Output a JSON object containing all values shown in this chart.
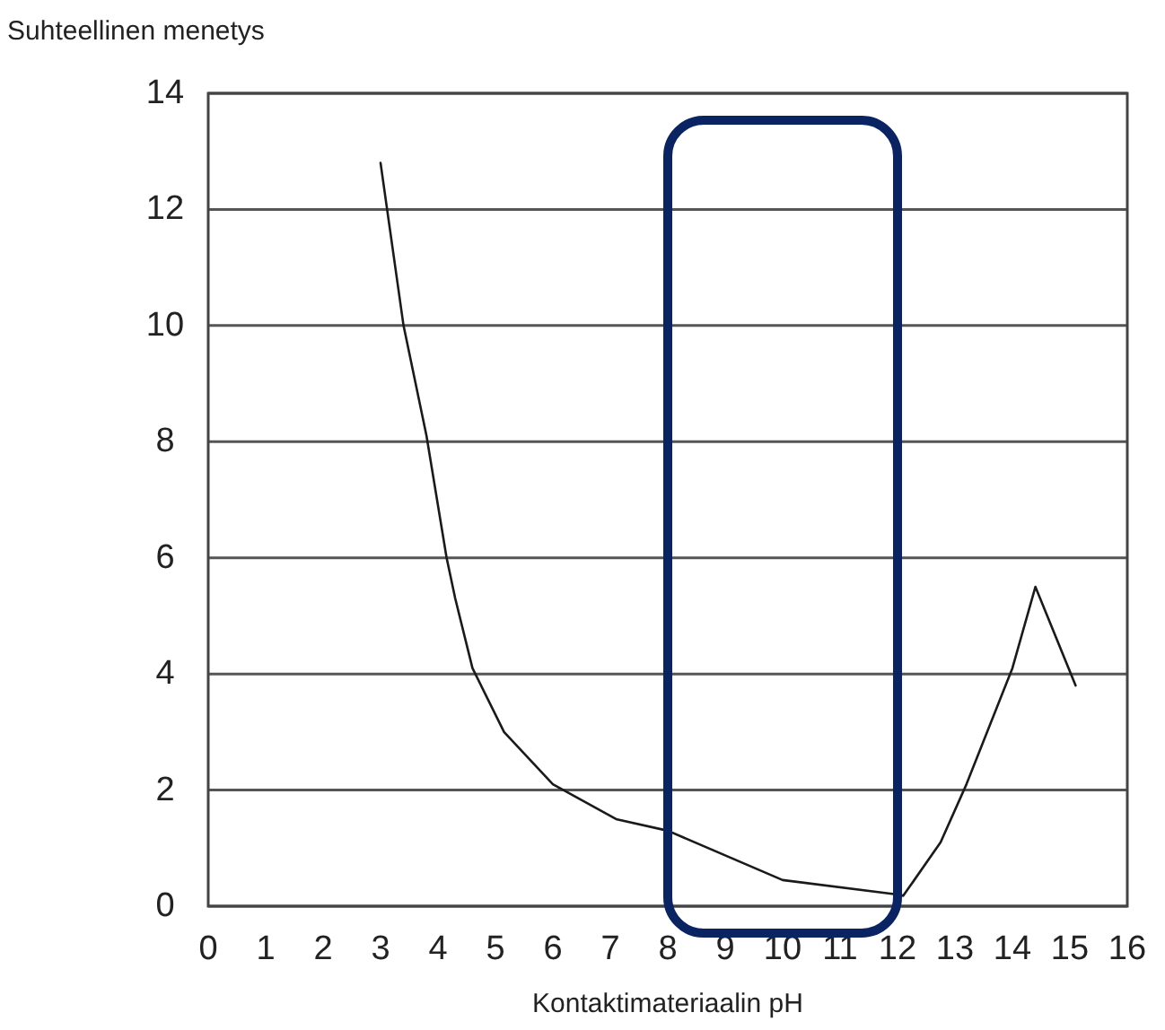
{
  "chart_data": {
    "type": "line",
    "ylabel": "Suhteellinen menetys",
    "xlabel": "Kontaktimateriaalin pH",
    "x": [
      3,
      3.4,
      3.8,
      4.15,
      4.3,
      4.6,
      5.15,
      6,
      7.1,
      8,
      10,
      12,
      12.1,
      12.75,
      13.2,
      14,
      14.4,
      15.1
    ],
    "series": [
      {
        "color": "#1a1a1a",
        "values": [
          12.8,
          10,
          8.1,
          6,
          5.3,
          4.1,
          3,
          2.1,
          1.5,
          1.3,
          0.45,
          0.2,
          0.18,
          1.1,
          2.1,
          4.1,
          5.5,
          3.8
        ]
      }
    ],
    "xlim": [
      0,
      16
    ],
    "xticks": [
      0,
      1,
      2,
      3,
      4,
      5,
      6,
      7,
      8,
      9,
      10,
      11,
      12,
      13,
      14,
      15,
      16
    ],
    "ylim": [
      0,
      14
    ],
    "yticks": [
      0,
      2,
      4,
      6,
      8,
      10,
      12,
      14
    ],
    "grid": "y"
  }
}
